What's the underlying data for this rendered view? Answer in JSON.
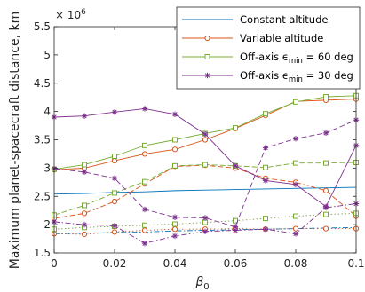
{
  "chart_data": {
    "type": "line",
    "xlabel": "β",
    "xlabel_subscript": "0",
    "ylabel": "Maximum planet-spacecraft distance, km",
    "exponent_label": "× 10",
    "exponent_power": "6",
    "xlim": [
      0,
      0.1
    ],
    "ylim": [
      1.5,
      5.5
    ],
    "x_ticks": [
      "0",
      "0.02",
      "0.04",
      "0.06",
      "0.08",
      "0.1"
    ],
    "y_ticks": [
      "1.5",
      "2",
      "2.5",
      "3",
      "3.5",
      "4",
      "4.5",
      "5",
      "5.5"
    ],
    "grid": false,
    "legend_position": "top-right",
    "legend": [
      {
        "label": "Constant altitude",
        "color": "#0072BD",
        "marker": "none"
      },
      {
        "label": "Variable altitude",
        "color": "#D95319",
        "marker": "circle"
      },
      {
        "label": "Off-axis ϵ",
        "label_sub": "min",
        "label_tail": " = 60 deg",
        "color": "#77AC30",
        "marker": "square"
      },
      {
        "label": "Off-axis ϵ",
        "label_sub": "min",
        "label_tail": " = 30 deg",
        "color": "#7E2F8E",
        "marker": "asterisk"
      }
    ],
    "x": [
      0,
      0.01,
      0.02,
      0.03,
      0.04,
      0.05,
      0.06,
      0.07,
      0.08,
      0.09,
      0.1
    ],
    "series": [
      {
        "group": "Constant altitude",
        "style": "solid",
        "color": "#0072BD",
        "marker": "none",
        "values": [
          2.54,
          2.55,
          2.57,
          2.58,
          2.6,
          2.61,
          2.62,
          2.63,
          2.64,
          2.65,
          2.66
        ]
      },
      {
        "group": "Constant altitude",
        "style": "dashdot",
        "color": "#0072BD",
        "marker": "none",
        "values": [
          1.84,
          1.85,
          1.86,
          1.87,
          1.89,
          1.9,
          1.91,
          1.92,
          1.93,
          1.94,
          1.95
        ]
      },
      {
        "group": "Variable altitude",
        "style": "solid",
        "color": "#D95319",
        "marker": "circle",
        "values": [
          2.97,
          3.0,
          3.13,
          3.25,
          3.33,
          3.5,
          3.7,
          3.93,
          4.18,
          4.2,
          4.22
        ]
      },
      {
        "group": "Variable altitude",
        "style": "dashed",
        "color": "#D95319",
        "marker": "circle",
        "values": [
          2.11,
          2.2,
          2.41,
          2.72,
          3.03,
          3.05,
          3.0,
          2.82,
          2.75,
          2.6,
          2.15
        ]
      },
      {
        "group": "Variable altitude",
        "style": "dotted",
        "color": "#D95319",
        "marker": "circle",
        "values": [
          1.84,
          1.83,
          1.87,
          1.9,
          1.92,
          1.92,
          1.93,
          1.92,
          1.93,
          1.93,
          1.93
        ]
      },
      {
        "group": "Off-axis 60",
        "style": "solid",
        "color": "#77AC30",
        "marker": "square",
        "values": [
          2.98,
          3.06,
          3.21,
          3.4,
          3.5,
          3.61,
          3.71,
          3.96,
          4.17,
          4.26,
          4.28
        ]
      },
      {
        "group": "Off-axis 60",
        "style": "dashed",
        "color": "#77AC30",
        "marker": "square",
        "values": [
          2.17,
          2.34,
          2.56,
          2.76,
          3.04,
          3.06,
          3.04,
          3.01,
          3.09,
          3.09,
          3.1
        ]
      },
      {
        "group": "Off-axis 60",
        "style": "dotted",
        "color": "#77AC30",
        "marker": "square",
        "values": [
          1.92,
          1.95,
          1.97,
          1.99,
          2.01,
          2.04,
          2.07,
          2.11,
          2.15,
          2.18,
          2.2
        ]
      },
      {
        "group": "Off-axis 30",
        "style": "solid",
        "color": "#7E2F8E",
        "marker": "asterisk",
        "values": [
          3.9,
          3.92,
          3.99,
          4.05,
          3.95,
          3.6,
          3.04,
          2.78,
          2.71,
          2.32,
          3.4
        ]
      },
      {
        "group": "Off-axis 30",
        "style": "dashed",
        "color": "#7E2F8E",
        "marker": "asterisk",
        "values": [
          2.99,
          2.93,
          2.82,
          2.27,
          2.13,
          2.12,
          1.96,
          3.36,
          3.52,
          3.62,
          3.85
        ]
      },
      {
        "group": "Off-axis 30",
        "style": "dashdot",
        "color": "#7E2F8E",
        "marker": "asterisk",
        "values": [
          2.05,
          2.0,
          1.98,
          1.67,
          1.8,
          1.88,
          1.9,
          1.92,
          1.84,
          2.3,
          2.37
        ]
      }
    ]
  }
}
